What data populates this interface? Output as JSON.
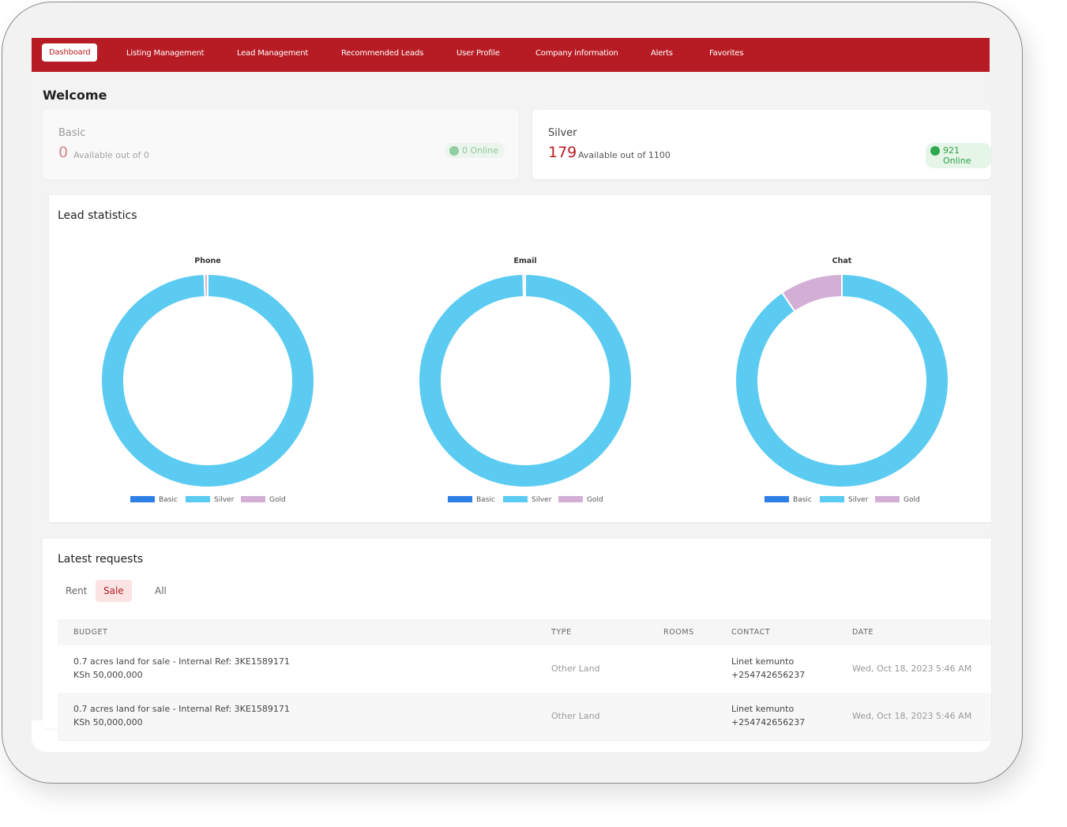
{
  "nav": [
    "Dashboard",
    "Listing Management",
    "Lead Management",
    "Recommended Leads",
    "User Profile",
    "Company information",
    "Alerts",
    "Favorites"
  ],
  "active_nav": 0,
  "welcome": "Welcome",
  "plans": [
    {
      "name": "Basic",
      "available": 0,
      "available_text": "Available out of 0",
      "online": "0 Online"
    },
    {
      "name": "Silver",
      "available": 179,
      "available_text": "Available out of 1100",
      "online": "921 Online"
    }
  ],
  "lead_statistics": {
    "title": "Lead statistics"
  },
  "chart_data": [
    {
      "type": "pie",
      "title": "Phone",
      "categories": [
        "Basic",
        "Silver",
        "Gold"
      ],
      "colors": [
        "#2f7fe8",
        "#5bcbf1",
        "#d3afd6"
      ],
      "values": [
        0,
        99.5,
        0.5
      ]
    },
    {
      "type": "pie",
      "title": "Email",
      "categories": [
        "Basic",
        "Silver",
        "Gold"
      ],
      "colors": [
        "#2f7fe8",
        "#5bcbf1",
        "#d3afd6"
      ],
      "values": [
        0,
        99.7,
        0.3
      ]
    },
    {
      "type": "pie",
      "title": "Chat",
      "categories": [
        "Basic",
        "Silver",
        "Gold"
      ],
      "colors": [
        "#2f7fe8",
        "#5bcbf1",
        "#d3afd6"
      ],
      "values": [
        0,
        90.5,
        9.5
      ]
    }
  ],
  "latest_requests": {
    "title": "Latest requests",
    "tabs": [
      "Rent",
      "Sale",
      "All"
    ],
    "active_tab": 1,
    "columns": [
      "BUDGET",
      "TYPE",
      "ROOMS",
      "CONTACT",
      "DATE"
    ],
    "rows": [
      {
        "title": "0.7 acres land for sale - Internal Ref: 3KE1589171",
        "price": "KSh 50,000,000",
        "type": "Other Land",
        "contact_name": "Linet kemunto",
        "contact_phone": "+254742656237",
        "date": "Wed, Oct 18, 2023 5:46 AM"
      },
      {
        "title": "0.7 acres land for sale - Internal Ref: 3KE1589171",
        "price": "KSh 50,000,000",
        "type": "Other Land",
        "contact_name": "Linet kemunto",
        "contact_phone": "+254742656237",
        "date": "Wed, Oct 18, 2023 5:46 AM"
      }
    ]
  }
}
